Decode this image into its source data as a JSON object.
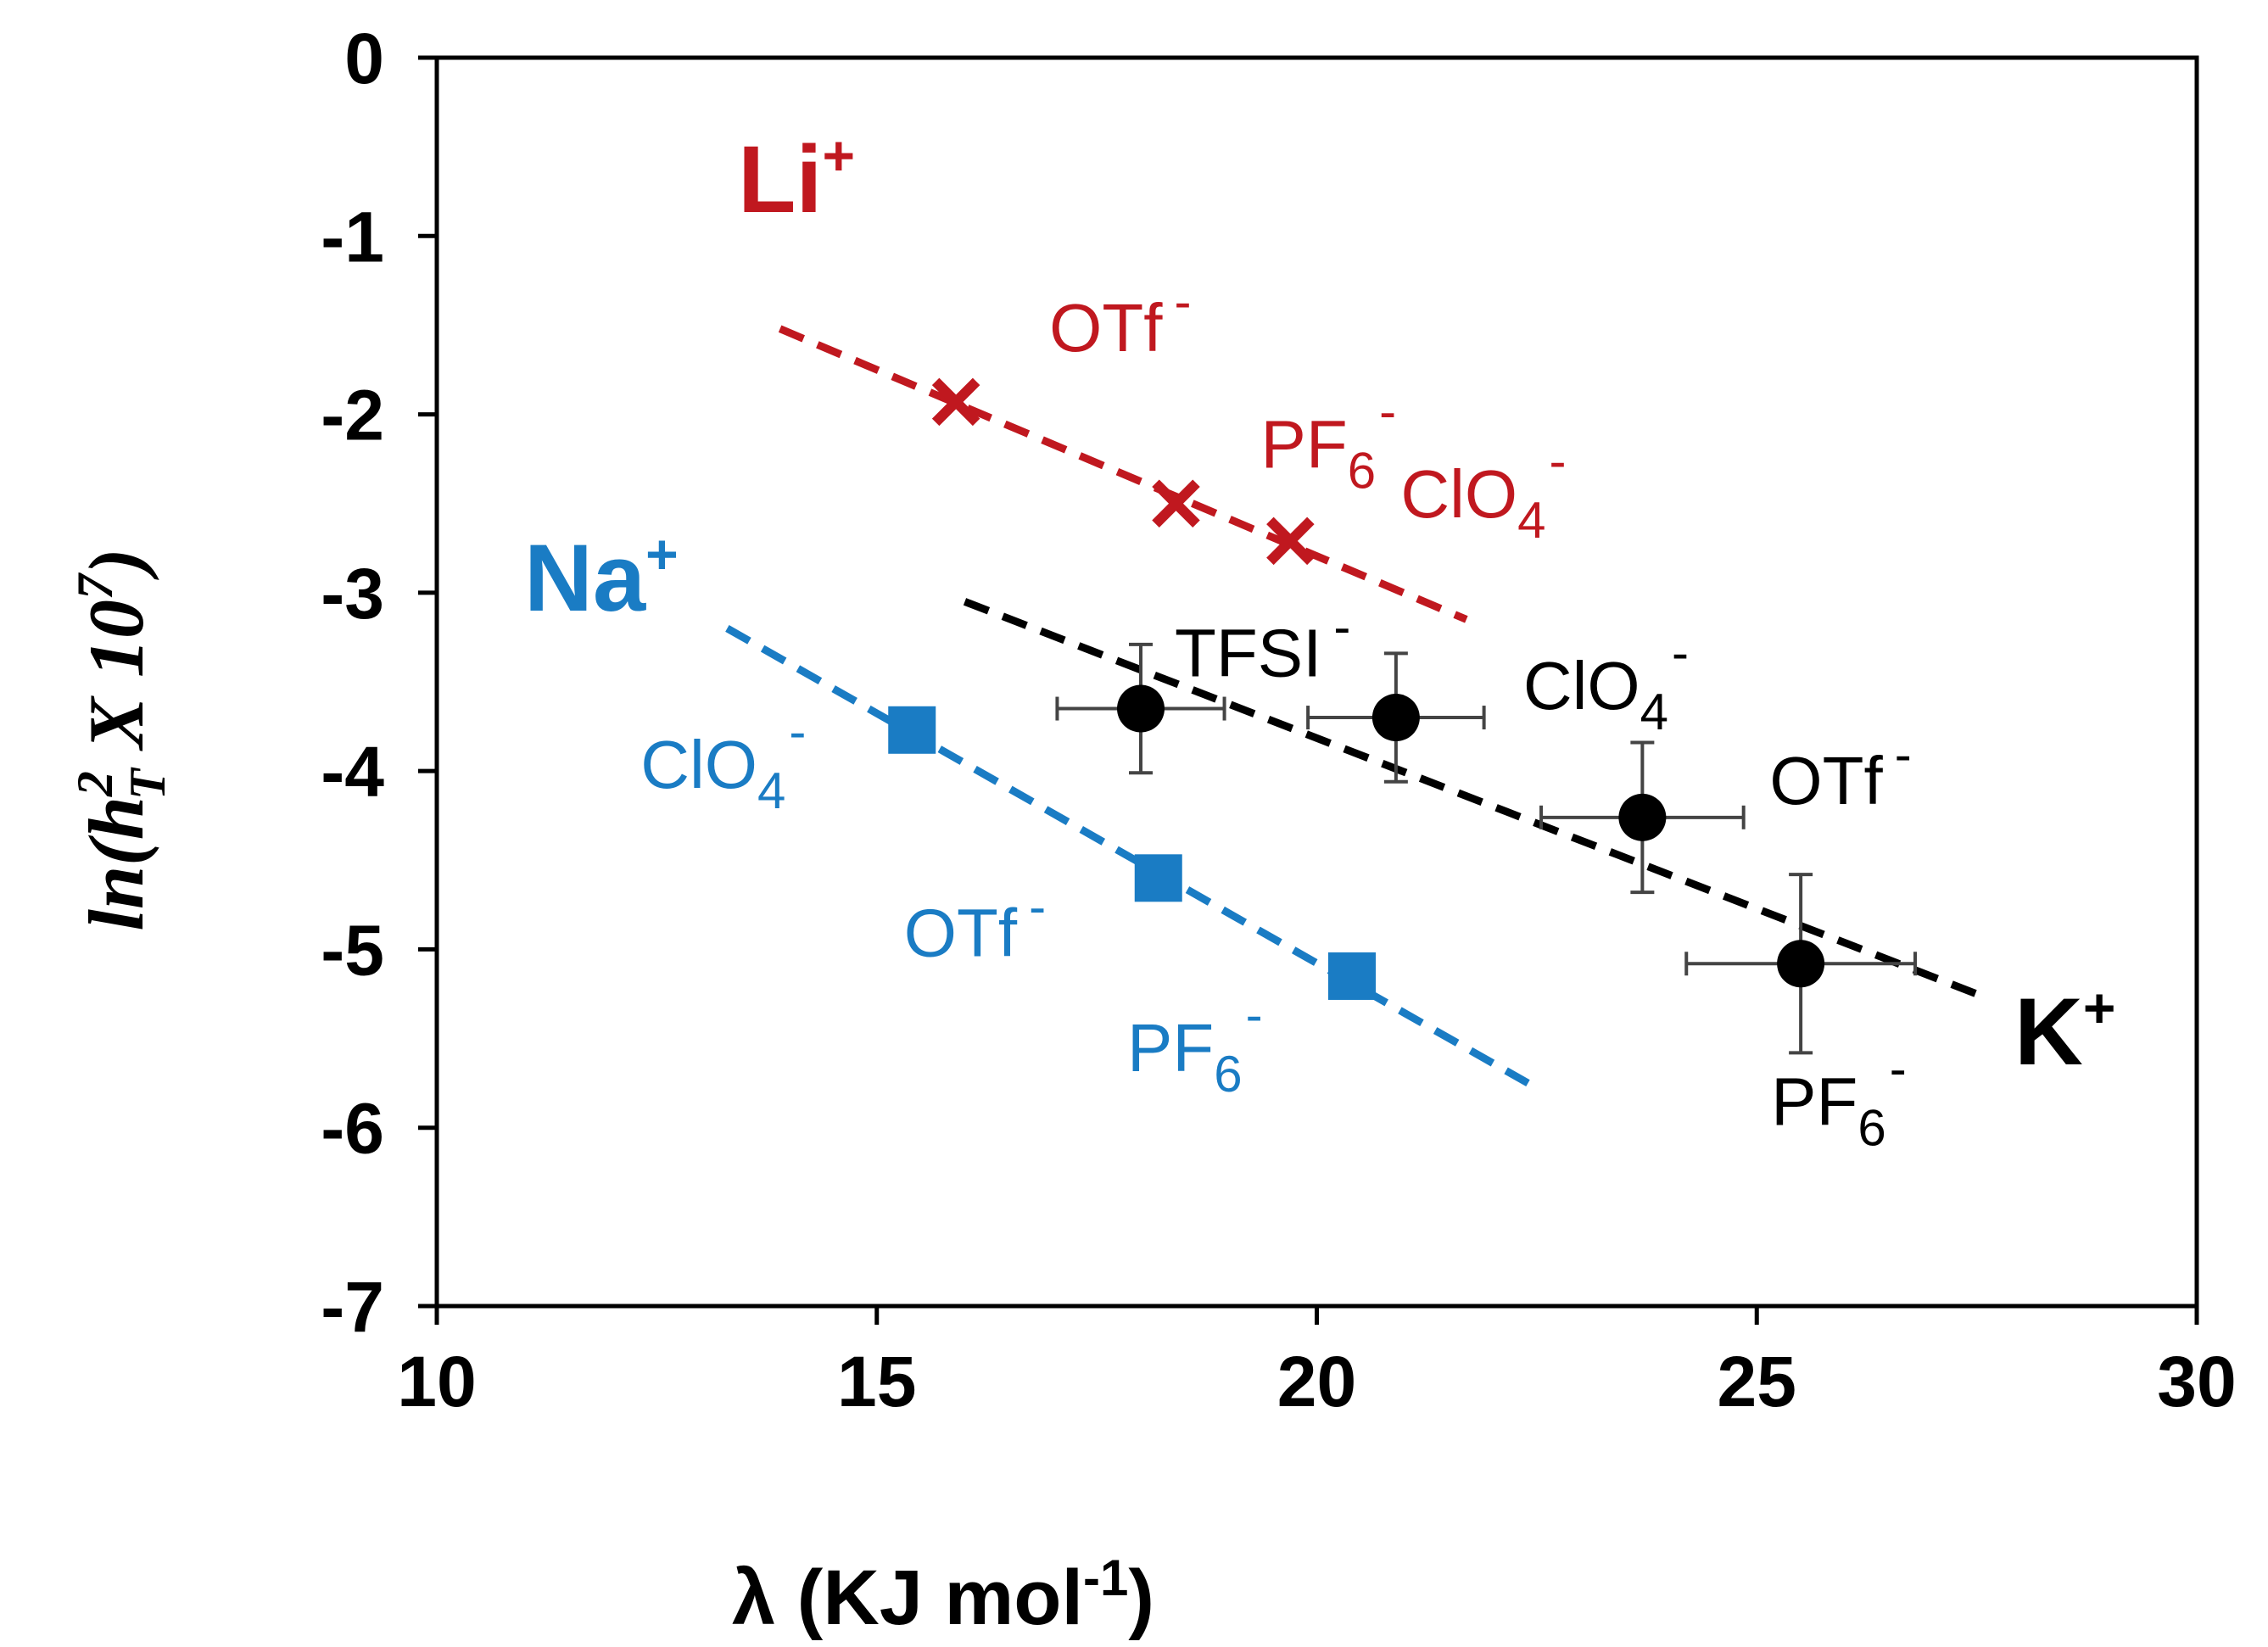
{
  "chart_data": {
    "type": "scatter",
    "title": "",
    "xlabel_parts": [
      "λ (KJ mol",
      "-1",
      ")"
    ],
    "ylabel_parts": [
      "ln(h",
      "2",
      "T",
      " X 10",
      "7",
      ")"
    ],
    "xlim": [
      10,
      30
    ],
    "ylim": [
      -7,
      0
    ],
    "xticks": [
      10,
      15,
      20,
      25,
      30
    ],
    "yticks": [
      0,
      -1,
      -2,
      -3,
      -4,
      -5,
      -6,
      -7
    ],
    "grid": false,
    "series": [
      {
        "name": "Li",
        "charge": "+",
        "color": "#c0181f",
        "marker": "x",
        "points": [
          {
            "x": 15.9,
            "y": -1.93,
            "base": "OTf",
            "sub": "",
            "sup": "-"
          },
          {
            "x": 18.4,
            "y": -2.5,
            "base": "PF",
            "sub": "6",
            "sup": "-"
          },
          {
            "x": 19.7,
            "y": -2.71,
            "base": "ClO",
            "sub": "4",
            "sup": "-"
          }
        ],
        "fit": {
          "x": [
            13.9,
            21.7
          ],
          "y": [
            -1.52,
            -3.15
          ]
        }
      },
      {
        "name": "Na",
        "charge": "+",
        "color": "#1a7cc4",
        "marker": "square",
        "points": [
          {
            "x": 15.4,
            "y": -3.77,
            "base": "ClO",
            "sub": "4",
            "sup": "-"
          },
          {
            "x": 18.2,
            "y": -4.6,
            "base": "OTf",
            "sub": "",
            "sup": "-"
          },
          {
            "x": 20.4,
            "y": -5.15,
            "base": "PF",
            "sub": "6",
            "sup": "-"
          }
        ],
        "fit": {
          "x": [
            13.3,
            22.4
          ],
          "y": [
            -3.2,
            -5.75
          ]
        }
      },
      {
        "name": "K",
        "charge": "+",
        "color": "#000000",
        "marker": "circle",
        "points": [
          {
            "x": 18.0,
            "y": -3.65,
            "xerr": 0.95,
            "yerr": 0.36,
            "base": "TFSI",
            "sub": "",
            "sup": "-"
          },
          {
            "x": 20.9,
            "y": -3.7,
            "xerr": 1.0,
            "yerr": 0.36,
            "base": "ClO",
            "sub": "4",
            "sup": "-"
          },
          {
            "x": 23.7,
            "y": -4.26,
            "xerr": 1.15,
            "yerr": 0.42,
            "base": "OTf",
            "sub": "",
            "sup": "-"
          },
          {
            "x": 25.5,
            "y": -5.08,
            "xerr": 1.3,
            "yerr": 0.5,
            "base": "PF",
            "sub": "6",
            "sup": "-"
          }
        ],
        "fit": {
          "x": [
            16.0,
            27.5
          ],
          "y": [
            -3.05,
            -5.25
          ]
        }
      }
    ]
  }
}
